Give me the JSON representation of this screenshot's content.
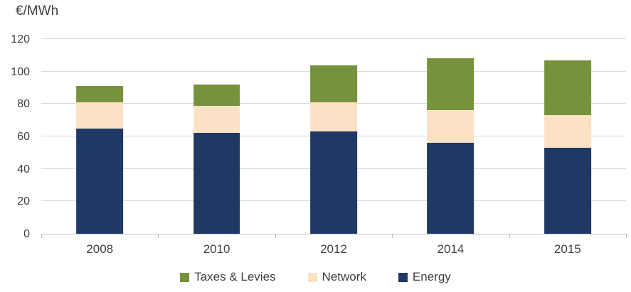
{
  "chart": {
    "unit_label": "€/MWh"
  },
  "chart_data": {
    "type": "bar",
    "stacked": true,
    "title": "€/MWh",
    "categories": [
      "2008",
      "2010",
      "2012",
      "2014",
      "2015"
    ],
    "series": [
      {
        "name": "Energy",
        "color": "#1F3864",
        "values": [
          65,
          62,
          63,
          56,
          53
        ]
      },
      {
        "name": "Network",
        "color": "#FBE2C5",
        "values": [
          16,
          17,
          18,
          20,
          20
        ]
      },
      {
        "name": "Taxes & Levies",
        "color": "#76923C",
        "values": [
          10,
          13,
          23,
          32,
          34
        ]
      }
    ],
    "totals": [
      91,
      92,
      104,
      108,
      107
    ],
    "legend_order": [
      "Taxes & Levies",
      "Network",
      "Energy"
    ],
    "ylim": [
      0,
      120
    ],
    "ytick_step": 20,
    "ytick_labels": [
      "0",
      "20",
      "40",
      "60",
      "80",
      "100",
      "120"
    ],
    "xlabel": "",
    "ylabel": "€/MWh",
    "grid": "horizontal",
    "legend_position": "bottom",
    "colors": {
      "background": "#FFFFFF",
      "text": "#404040",
      "gridline": "#D9D9D9",
      "axis": "#BFBFBF"
    }
  }
}
